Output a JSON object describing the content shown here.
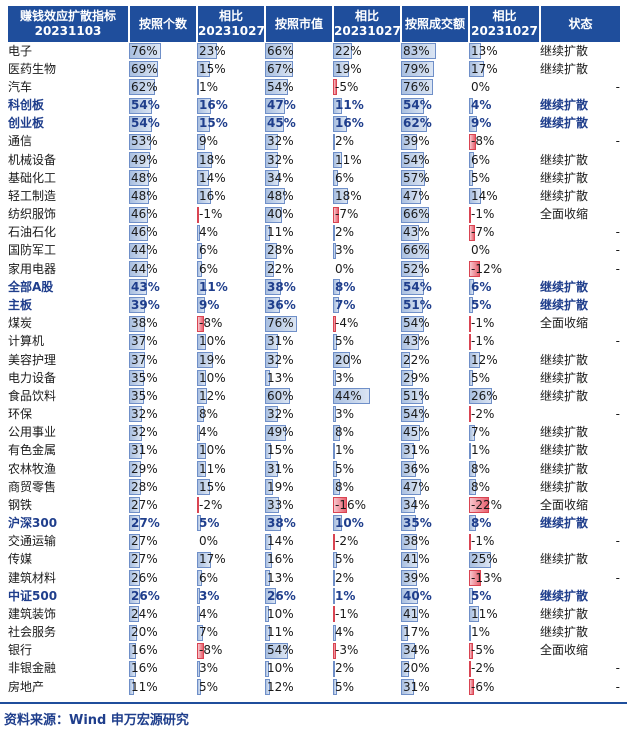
{
  "headers": [
    "赚钱效应扩散指标\n20231103",
    "按照个数",
    "相比\n20231027",
    "按照市值",
    "相比\n20231027",
    "按照成交额",
    "相比\n20231027",
    "状态"
  ],
  "rows": [
    {
      "name": "电子",
      "c1": "76%",
      "c1v": 76,
      "d1": "23%",
      "d1v": 23,
      "c2": "66%",
      "c2v": 66,
      "d2": "22%",
      "d2v": 22,
      "c3": "83%",
      "c3v": 83,
      "d3": "13%",
      "d3v": 13,
      "status": "继续扩散",
      "bold": false
    },
    {
      "name": "医药生物",
      "c1": "69%",
      "c1v": 69,
      "d1": "15%",
      "d1v": 15,
      "c2": "67%",
      "c2v": 67,
      "d2": "19%",
      "d2v": 19,
      "c3": "79%",
      "c3v": 79,
      "d3": "17%",
      "d3v": 17,
      "status": "继续扩散",
      "bold": false
    },
    {
      "name": "汽车",
      "c1": "62%",
      "c1v": 62,
      "d1": "1%",
      "d1v": 1,
      "c2": "54%",
      "c2v": 54,
      "d2": "-5%",
      "d2v": -5,
      "c3": "76%",
      "c3v": 76,
      "d3": "0%",
      "d3v": 0,
      "status": "-",
      "bold": false
    },
    {
      "name": "科创板",
      "c1": "54%",
      "c1v": 54,
      "d1": "16%",
      "d1v": 16,
      "c2": "47%",
      "c2v": 47,
      "d2": "11%",
      "d2v": 11,
      "c3": "54%",
      "c3v": 54,
      "d3": "4%",
      "d3v": 4,
      "status": "继续扩散",
      "bold": true
    },
    {
      "name": "创业板",
      "c1": "54%",
      "c1v": 54,
      "d1": "15%",
      "d1v": 15,
      "c2": "45%",
      "c2v": 45,
      "d2": "16%",
      "d2v": 16,
      "c3": "62%",
      "c3v": 62,
      "d3": "9%",
      "d3v": 9,
      "status": "继续扩散",
      "bold": true
    },
    {
      "name": "通信",
      "c1": "53%",
      "c1v": 53,
      "d1": "9%",
      "d1v": 9,
      "c2": "32%",
      "c2v": 32,
      "d2": "2%",
      "d2v": 2,
      "c3": "39%",
      "c3v": 39,
      "d3": "-8%",
      "d3v": -8,
      "status": "-",
      "bold": false
    },
    {
      "name": "机械设备",
      "c1": "49%",
      "c1v": 49,
      "d1": "18%",
      "d1v": 18,
      "c2": "32%",
      "c2v": 32,
      "d2": "11%",
      "d2v": 11,
      "c3": "54%",
      "c3v": 54,
      "d3": "6%",
      "d3v": 6,
      "status": "继续扩散",
      "bold": false
    },
    {
      "name": "基础化工",
      "c1": "48%",
      "c1v": 48,
      "d1": "14%",
      "d1v": 14,
      "c2": "34%",
      "c2v": 34,
      "d2": "6%",
      "d2v": 6,
      "c3": "57%",
      "c3v": 57,
      "d3": "5%",
      "d3v": 5,
      "status": "继续扩散",
      "bold": false
    },
    {
      "name": "轻工制造",
      "c1": "48%",
      "c1v": 48,
      "d1": "16%",
      "d1v": 16,
      "c2": "48%",
      "c2v": 48,
      "d2": "18%",
      "d2v": 18,
      "c3": "47%",
      "c3v": 47,
      "d3": "14%",
      "d3v": 14,
      "status": "继续扩散",
      "bold": false
    },
    {
      "name": "纺织服饰",
      "c1": "46%",
      "c1v": 46,
      "d1": "-1%",
      "d1v": -1,
      "c2": "40%",
      "c2v": 40,
      "d2": "-7%",
      "d2v": -7,
      "c3": "66%",
      "c3v": 66,
      "d3": "-1%",
      "d3v": -1,
      "status": "全面收缩",
      "bold": false
    },
    {
      "name": "石油石化",
      "c1": "46%",
      "c1v": 46,
      "d1": "4%",
      "d1v": 4,
      "c2": "11%",
      "c2v": 11,
      "d2": "2%",
      "d2v": 2,
      "c3": "43%",
      "c3v": 43,
      "d3": "-7%",
      "d3v": -7,
      "status": "-",
      "bold": false
    },
    {
      "name": "国防军工",
      "c1": "44%",
      "c1v": 44,
      "d1": "6%",
      "d1v": 6,
      "c2": "28%",
      "c2v": 28,
      "d2": "3%",
      "d2v": 3,
      "c3": "66%",
      "c3v": 66,
      "d3": "0%",
      "d3v": 0,
      "status": "-",
      "bold": false
    },
    {
      "name": "家用电器",
      "c1": "44%",
      "c1v": 44,
      "d1": "6%",
      "d1v": 6,
      "c2": "22%",
      "c2v": 22,
      "d2": "0%",
      "d2v": 0,
      "c3": "52%",
      "c3v": 52,
      "d3": "-12%",
      "d3v": -12,
      "status": "-",
      "bold": false
    },
    {
      "name": "全部A股",
      "c1": "43%",
      "c1v": 43,
      "d1": "11%",
      "d1v": 11,
      "c2": "38%",
      "c2v": 38,
      "d2": "8%",
      "d2v": 8,
      "c3": "54%",
      "c3v": 54,
      "d3": "6%",
      "d3v": 6,
      "status": "继续扩散",
      "bold": true
    },
    {
      "name": "主板",
      "c1": "39%",
      "c1v": 39,
      "d1": "9%",
      "d1v": 9,
      "c2": "36%",
      "c2v": 36,
      "d2": "7%",
      "d2v": 7,
      "c3": "51%",
      "c3v": 51,
      "d3": "5%",
      "d3v": 5,
      "status": "继续扩散",
      "bold": true
    },
    {
      "name": "煤炭",
      "c1": "38%",
      "c1v": 38,
      "d1": "-8%",
      "d1v": -8,
      "c2": "76%",
      "c2v": 76,
      "d2": "-4%",
      "d2v": -4,
      "c3": "54%",
      "c3v": 54,
      "d3": "-1%",
      "d3v": -1,
      "status": "全面收缩",
      "bold": false
    },
    {
      "name": "计算机",
      "c1": "37%",
      "c1v": 37,
      "d1": "10%",
      "d1v": 10,
      "c2": "31%",
      "c2v": 31,
      "d2": "5%",
      "d2v": 5,
      "c3": "43%",
      "c3v": 43,
      "d3": "-1%",
      "d3v": -1,
      "status": "-",
      "bold": false
    },
    {
      "name": "美容护理",
      "c1": "37%",
      "c1v": 37,
      "d1": "19%",
      "d1v": 19,
      "c2": "32%",
      "c2v": 32,
      "d2": "20%",
      "d2v": 20,
      "c3": "22%",
      "c3v": 22,
      "d3": "12%",
      "d3v": 12,
      "status": "继续扩散",
      "bold": false
    },
    {
      "name": "电力设备",
      "c1": "35%",
      "c1v": 35,
      "d1": "10%",
      "d1v": 10,
      "c2": "13%",
      "c2v": 13,
      "d2": "3%",
      "d2v": 3,
      "c3": "29%",
      "c3v": 29,
      "d3": "5%",
      "d3v": 5,
      "status": "继续扩散",
      "bold": false
    },
    {
      "name": "食品饮料",
      "c1": "35%",
      "c1v": 35,
      "d1": "12%",
      "d1v": 12,
      "c2": "60%",
      "c2v": 60,
      "d2": "44%",
      "d2v": 44,
      "c3": "51%",
      "c3v": 51,
      "d3": "26%",
      "d3v": 26,
      "status": "继续扩散",
      "bold": false
    },
    {
      "name": "环保",
      "c1": "32%",
      "c1v": 32,
      "d1": "8%",
      "d1v": 8,
      "c2": "32%",
      "c2v": 32,
      "d2": "3%",
      "d2v": 3,
      "c3": "54%",
      "c3v": 54,
      "d3": "-2%",
      "d3v": -2,
      "status": "-",
      "bold": false
    },
    {
      "name": "公用事业",
      "c1": "32%",
      "c1v": 32,
      "d1": "4%",
      "d1v": 4,
      "c2": "49%",
      "c2v": 49,
      "d2": "8%",
      "d2v": 8,
      "c3": "45%",
      "c3v": 45,
      "d3": "7%",
      "d3v": 7,
      "status": "继续扩散",
      "bold": false
    },
    {
      "name": "有色金属",
      "c1": "31%",
      "c1v": 31,
      "d1": "10%",
      "d1v": 10,
      "c2": "15%",
      "c2v": 15,
      "d2": "1%",
      "d2v": 1,
      "c3": "31%",
      "c3v": 31,
      "d3": "1%",
      "d3v": 1,
      "status": "继续扩散",
      "bold": false
    },
    {
      "name": "农林牧渔",
      "c1": "29%",
      "c1v": 29,
      "d1": "11%",
      "d1v": 11,
      "c2": "31%",
      "c2v": 31,
      "d2": "5%",
      "d2v": 5,
      "c3": "36%",
      "c3v": 36,
      "d3": "8%",
      "d3v": 8,
      "status": "继续扩散",
      "bold": false
    },
    {
      "name": "商贸零售",
      "c1": "28%",
      "c1v": 28,
      "d1": "15%",
      "d1v": 15,
      "c2": "19%",
      "c2v": 19,
      "d2": "8%",
      "d2v": 8,
      "c3": "47%",
      "c3v": 47,
      "d3": "8%",
      "d3v": 8,
      "status": "继续扩散",
      "bold": false
    },
    {
      "name": "钢铁",
      "c1": "27%",
      "c1v": 27,
      "d1": "-2%",
      "d1v": -2,
      "c2": "33%",
      "c2v": 33,
      "d2": "-16%",
      "d2v": -16,
      "c3": "34%",
      "c3v": 34,
      "d3": "-22%",
      "d3v": -22,
      "status": "全面收缩",
      "bold": false
    },
    {
      "name": "沪深300",
      "c1": "27%",
      "c1v": 27,
      "d1": "5%",
      "d1v": 5,
      "c2": "38%",
      "c2v": 38,
      "d2": "10%",
      "d2v": 10,
      "c3": "35%",
      "c3v": 35,
      "d3": "8%",
      "d3v": 8,
      "status": "继续扩散",
      "bold": true
    },
    {
      "name": "交通运输",
      "c1": "27%",
      "c1v": 27,
      "d1": "0%",
      "d1v": 0,
      "c2": "14%",
      "c2v": 14,
      "d2": "-2%",
      "d2v": -2,
      "c3": "38%",
      "c3v": 38,
      "d3": "-1%",
      "d3v": -1,
      "status": "-",
      "bold": false
    },
    {
      "name": "传媒",
      "c1": "27%",
      "c1v": 27,
      "d1": "17%",
      "d1v": 17,
      "c2": "16%",
      "c2v": 16,
      "d2": "5%",
      "d2v": 5,
      "c3": "41%",
      "c3v": 41,
      "d3": "25%",
      "d3v": 25,
      "status": "继续扩散",
      "bold": false
    },
    {
      "name": "建筑材料",
      "c1": "26%",
      "c1v": 26,
      "d1": "6%",
      "d1v": 6,
      "c2": "13%",
      "c2v": 13,
      "d2": "2%",
      "d2v": 2,
      "c3": "39%",
      "c3v": 39,
      "d3": "-13%",
      "d3v": -13,
      "status": "-",
      "bold": false
    },
    {
      "name": "中证500",
      "c1": "26%",
      "c1v": 26,
      "d1": "3%",
      "d1v": 3,
      "c2": "26%",
      "c2v": 26,
      "d2": "1%",
      "d2v": 1,
      "c3": "40%",
      "c3v": 40,
      "d3": "5%",
      "d3v": 5,
      "status": "继续扩散",
      "bold": true
    },
    {
      "name": "建筑装饰",
      "c1": "24%",
      "c1v": 24,
      "d1": "4%",
      "d1v": 4,
      "c2": "10%",
      "c2v": 10,
      "d2": "-1%",
      "d2v": -1,
      "c3": "41%",
      "c3v": 41,
      "d3": "11%",
      "d3v": 11,
      "status": "继续扩散",
      "bold": false
    },
    {
      "name": "社会服务",
      "c1": "20%",
      "c1v": 20,
      "d1": "7%",
      "d1v": 7,
      "c2": "11%",
      "c2v": 11,
      "d2": "4%",
      "d2v": 4,
      "c3": "17%",
      "c3v": 17,
      "d3": "1%",
      "d3v": 1,
      "status": "继续扩散",
      "bold": false
    },
    {
      "name": "银行",
      "c1": "16%",
      "c1v": 16,
      "d1": "-8%",
      "d1v": -8,
      "c2": "54%",
      "c2v": 54,
      "d2": "-3%",
      "d2v": -3,
      "c3": "34%",
      "c3v": 34,
      "d3": "-5%",
      "d3v": -5,
      "status": "全面收缩",
      "bold": false
    },
    {
      "name": "非银金融",
      "c1": "16%",
      "c1v": 16,
      "d1": "3%",
      "d1v": 3,
      "c2": "10%",
      "c2v": 10,
      "d2": "2%",
      "d2v": 2,
      "c3": "20%",
      "c3v": 20,
      "d3": "-2%",
      "d3v": -2,
      "status": "-",
      "bold": false
    },
    {
      "name": "房地产",
      "c1": "11%",
      "c1v": 11,
      "d1": "5%",
      "d1v": 5,
      "c2": "12%",
      "c2v": 12,
      "d2": "5%",
      "d2v": 5,
      "c3": "31%",
      "c3v": 31,
      "d3": "-6%",
      "d3v": -6,
      "status": "-",
      "bold": false
    }
  ],
  "source": "资料来源：Wind 申万宏源研究"
}
